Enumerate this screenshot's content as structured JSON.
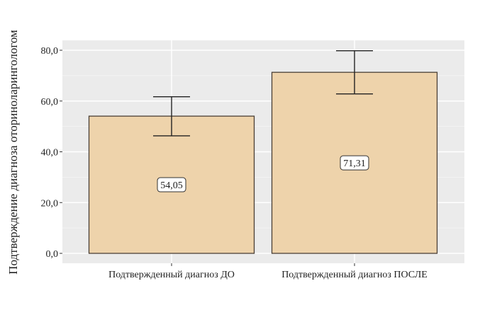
{
  "chart_data": {
    "type": "bar",
    "title": "",
    "xlabel": "",
    "ylabel": "Подтверждение диагноза оториноларингологом",
    "categories": [
      "Подтвержденный диагноз ДО",
      "Подтвержденный диагноз ПОСЛЕ"
    ],
    "values": [
      54.05,
      71.31
    ],
    "value_labels": [
      "54,05",
      "71,31"
    ],
    "error_bars": [
      {
        "low": 46.3,
        "high": 61.7
      },
      {
        "low": 62.8,
        "high": 79.8
      }
    ],
    "ylim": [
      0,
      84
    ],
    "yticks": [
      0,
      20,
      40,
      60,
      80
    ],
    "ytick_labels": [
      "0,0",
      "20,0",
      "40,0",
      "60,0",
      "80,0"
    ],
    "grid": true,
    "colors": {
      "bar": "#eed3ab",
      "bar_edge": "#4a3f35",
      "panel": "#ebebeb",
      "grid": "#ffffff"
    }
  }
}
